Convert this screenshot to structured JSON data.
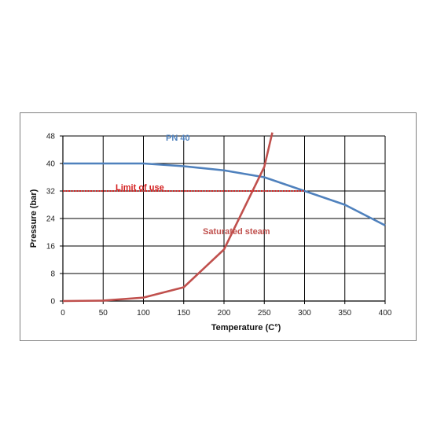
{
  "chart_data": {
    "type": "line",
    "xlabel": "Temperature (C°)",
    "ylabel": "Pressure (bar)",
    "xlim": [
      0,
      400
    ],
    "ylim": [
      0,
      48
    ],
    "x_ticks": [
      0,
      50,
      100,
      150,
      200,
      250,
      300,
      350,
      400
    ],
    "y_ticks": [
      0,
      8,
      16,
      24,
      32,
      40,
      48
    ],
    "grid": true,
    "series": [
      {
        "name": "PN 40",
        "color": "#4f81bd",
        "x": [
          0,
          100,
          150,
          200,
          250,
          300,
          350,
          400
        ],
        "y": [
          40,
          40,
          39.2,
          38,
          36,
          32,
          28,
          22
        ]
      },
      {
        "name": "Saturated steam",
        "color": "#c0504d",
        "x": [
          0,
          50,
          100,
          150,
          200,
          250,
          260
        ],
        "y": [
          0,
          0.12,
          1,
          4,
          15,
          39,
          49
        ]
      },
      {
        "name": "Limit of use",
        "color": "#d42020",
        "style": "dotted",
        "x": [
          0,
          300
        ],
        "y": [
          32,
          32
        ]
      }
    ]
  }
}
